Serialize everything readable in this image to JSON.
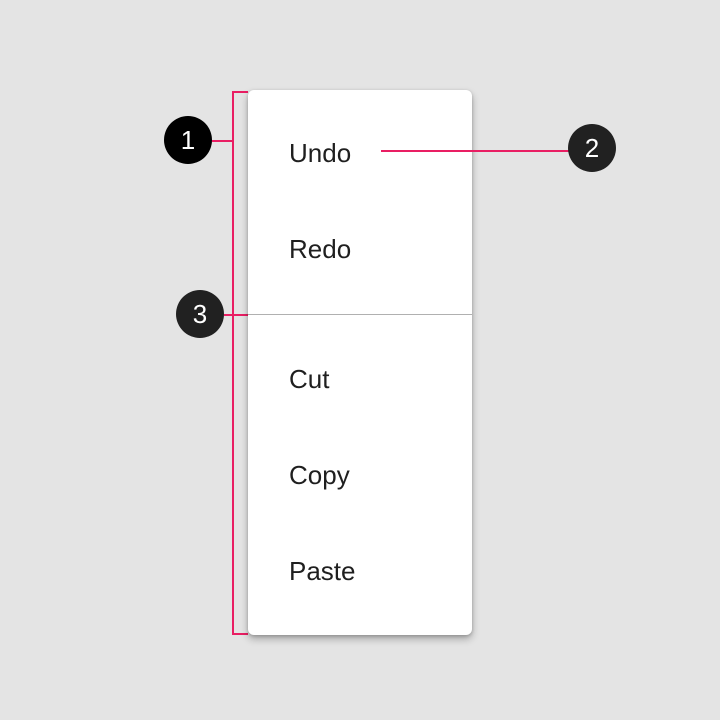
{
  "menu": {
    "items": [
      {
        "label": "Undo"
      },
      {
        "label": "Redo"
      },
      {
        "label": "Cut"
      },
      {
        "label": "Copy"
      },
      {
        "label": "Paste"
      }
    ]
  },
  "callouts": [
    "1",
    "2",
    "3"
  ],
  "colors": {
    "background": "#e4e4e4",
    "menu_surface": "#ffffff",
    "annotation_line": "#e91e63",
    "callout_fill": "#212121",
    "divider": "#b0b0b0"
  }
}
